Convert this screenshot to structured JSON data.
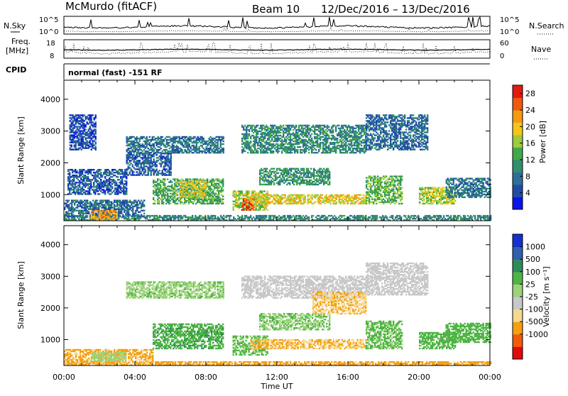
{
  "header": {
    "station": "McMurdo (fitACF)",
    "beam": "Beam 10",
    "date_range": "12/Dec/2016 – 13/Dec/2016"
  },
  "noise_panel": {
    "left_label": "N.Sky",
    "right_label": "N.Search",
    "left_ticks": [
      "10^5",
      "10^0"
    ],
    "right_ticks": [
      "10^5",
      "10^0"
    ]
  },
  "freq_panel": {
    "left_label_1": "Freq.",
    "left_label_2": "[MHz]",
    "right_label": "Nave",
    "left_ticks": [
      "18",
      "8"
    ],
    "right_ticks": [
      "60",
      "0"
    ]
  },
  "cpid_panel": {
    "label": "CPID",
    "text": "normal (fast) -151 RF"
  },
  "colors": {
    "power": [
      "#0a14e6",
      "#1f4ba8",
      "#2f6e9a",
      "#2f8f6e",
      "#41a84a",
      "#9ccb3c",
      "#f5c518",
      "#f59a10",
      "#ef5a10",
      "#e21a12"
    ],
    "velocity": [
      "#e20a0a",
      "#f25a0a",
      "#f5a010",
      "#f5d890",
      "#c8c8c8",
      "#9dd27a",
      "#4fb444",
      "#2f8a5a",
      "#2f5fb0",
      "#1530d0"
    ]
  },
  "chart_data": [
    {
      "type": "heatmap",
      "name": "Power",
      "xlabel": "",
      "ylabel": "Slant Range [km]",
      "x_ticks": [
        "00:00",
        "04:00",
        "08:00",
        "12:00",
        "16:00",
        "20:00",
        "00:00"
      ],
      "y_ticks": [
        1000,
        2000,
        3000,
        4000
      ],
      "ylim": [
        180,
        4600
      ],
      "xlim_hours": [
        0,
        24
      ],
      "colorbar": {
        "label": "Power [dB]",
        "ticks": [
          4,
          8,
          12,
          16,
          20,
          24,
          28
        ],
        "range": [
          0,
          30
        ]
      },
      "regions": [
        {
          "t0": 0.0,
          "t1": 24.0,
          "r0": 180,
          "r1": 320,
          "v": 10
        },
        {
          "t0": 0.0,
          "t1": 4.5,
          "r0": 300,
          "r1": 800,
          "v": 7
        },
        {
          "t0": 1.5,
          "t1": 3.0,
          "r0": 200,
          "r1": 500,
          "v": 22
        },
        {
          "t0": 0.2,
          "t1": 3.5,
          "r0": 1000,
          "r1": 1800,
          "v": 6
        },
        {
          "t0": 0.3,
          "t1": 1.8,
          "r0": 2400,
          "r1": 3500,
          "v": 5
        },
        {
          "t0": 3.5,
          "t1": 6.0,
          "r0": 1600,
          "r1": 2300,
          "v": 6
        },
        {
          "t0": 5.0,
          "t1": 9.0,
          "r0": 700,
          "r1": 1500,
          "v": 13
        },
        {
          "t0": 6.5,
          "t1": 8.0,
          "r0": 900,
          "r1": 1400,
          "v": 18
        },
        {
          "t0": 3.5,
          "t1": 9.0,
          "r0": 2300,
          "r1": 2800,
          "v": 8
        },
        {
          "t0": 9.5,
          "t1": 11.5,
          "r0": 500,
          "r1": 1100,
          "v": 16
        },
        {
          "t0": 10.0,
          "t1": 10.7,
          "r0": 500,
          "r1": 900,
          "v": 27
        },
        {
          "t0": 10.5,
          "t1": 17.0,
          "r0": 700,
          "r1": 1000,
          "v": 19
        },
        {
          "t0": 11.0,
          "t1": 15.0,
          "r0": 1300,
          "r1": 1800,
          "v": 11
        },
        {
          "t0": 10.0,
          "t1": 17.0,
          "r0": 2300,
          "r1": 3200,
          "v": 10
        },
        {
          "t0": 17.0,
          "t1": 19.0,
          "r0": 700,
          "r1": 1600,
          "v": 14
        },
        {
          "t0": 17.0,
          "t1": 20.5,
          "r0": 2400,
          "r1": 3500,
          "v": 7
        },
        {
          "t0": 20.0,
          "t1": 22.0,
          "r0": 700,
          "r1": 1200,
          "v": 17
        },
        {
          "t0": 21.5,
          "t1": 24.0,
          "r0": 900,
          "r1": 1500,
          "v": 8
        }
      ]
    },
    {
      "type": "heatmap",
      "name": "Velocity",
      "xlabel": "Time UT",
      "ylabel": "Slant Range [km]",
      "x_ticks": [
        "00:00",
        "04:00",
        "08:00",
        "12:00",
        "16:00",
        "20:00",
        "00:00"
      ],
      "y_ticks": [
        1000,
        2000,
        3000,
        4000
      ],
      "ylim": [
        180,
        4600
      ],
      "xlim_hours": [
        0,
        24
      ],
      "colorbar": {
        "label": "Velocity [m s⁻¹]",
        "ticks": [
          "1000",
          "500",
          "100",
          "25",
          "-25",
          "-100",
          "-500",
          "-1000"
        ]
      },
      "regions": [
        {
          "t0": 0.0,
          "t1": 24.0,
          "r0": 180,
          "r1": 300,
          "v": -150
        },
        {
          "t0": 0.0,
          "t1": 5.0,
          "r0": 250,
          "r1": 700,
          "v": -120
        },
        {
          "t0": 1.5,
          "t1": 3.5,
          "r0": 300,
          "r1": 600,
          "v": 60
        },
        {
          "t0": 5.0,
          "t1": 9.0,
          "r0": 700,
          "r1": 1500,
          "v": 400
        },
        {
          "t0": 3.5,
          "t1": 9.0,
          "r0": 2300,
          "r1": 2800,
          "v": 80
        },
        {
          "t0": 9.5,
          "t1": 11.5,
          "r0": 500,
          "r1": 1100,
          "v": 120
        },
        {
          "t0": 10.5,
          "t1": 17.0,
          "r0": 700,
          "r1": 1000,
          "v": -100
        },
        {
          "t0": 11.0,
          "t1": 15.0,
          "r0": 1300,
          "r1": 1800,
          "v": 90
        },
        {
          "t0": 10.0,
          "t1": 17.0,
          "r0": 2300,
          "r1": 3000,
          "v": 0
        },
        {
          "t0": 14.0,
          "t1": 17.0,
          "r0": 1800,
          "r1": 2500,
          "v": -90
        },
        {
          "t0": 17.0,
          "t1": 19.0,
          "r0": 700,
          "r1": 1600,
          "v": 120
        },
        {
          "t0": 17.0,
          "t1": 20.5,
          "r0": 2400,
          "r1": 3400,
          "v": 0
        },
        {
          "t0": 20.0,
          "t1": 22.0,
          "r0": 700,
          "r1": 1200,
          "v": 150
        },
        {
          "t0": 21.5,
          "t1": 24.0,
          "r0": 900,
          "r1": 1500,
          "v": 200
        }
      ]
    }
  ]
}
